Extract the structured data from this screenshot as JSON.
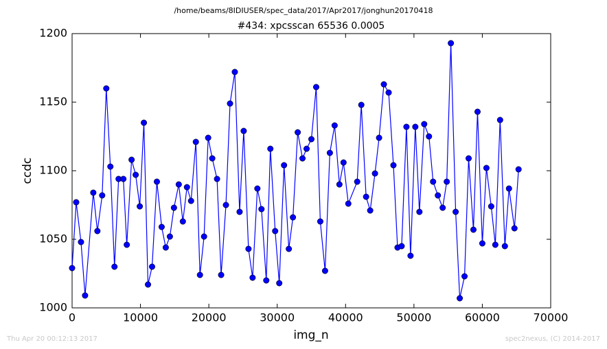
{
  "chart_data": {
    "type": "line",
    "suptitle": "/home/beams/8IDIUSER/spec_data/2017/Apr2017/jonghun20170418",
    "title": "#434: xpcsscan 65536 0.0005",
    "xlabel": "img_n",
    "ylabel": "ccdc",
    "color": "#0000ff",
    "xlim": [
      0,
      70000
    ],
    "xticks": [
      0,
      10000,
      20000,
      30000,
      40000,
      50000,
      60000,
      70000
    ],
    "ylim": [
      1000,
      1200
    ],
    "yticks": [
      1000,
      1050,
      1100,
      1150,
      1200
    ],
    "x": [
      0,
      600,
      1300,
      1900,
      3100,
      3700,
      4400,
      5000,
      5600,
      6200,
      6800,
      7500,
      8000,
      8700,
      9300,
      9900,
      10500,
      11100,
      11700,
      12400,
      13100,
      13700,
      14300,
      14900,
      15600,
      16200,
      16800,
      17400,
      18100,
      18700,
      19300,
      19900,
      20500,
      21200,
      21800,
      22500,
      23100,
      23800,
      24500,
      25100,
      25800,
      26400,
      27100,
      27700,
      28400,
      29000,
      29700,
      30300,
      31000,
      31700,
      32300,
      33000,
      33700,
      34300,
      35000,
      35700,
      36300,
      37000,
      37700,
      38400,
      39100,
      39700,
      40400,
      41700,
      42300,
      43000,
      43600,
      44300,
      44900,
      45600,
      46300,
      47000,
      47600,
      48200,
      48900,
      49500,
      50200,
      50800,
      51500,
      52200,
      52800,
      53500,
      54200,
      54800,
      55400,
      56100,
      56700,
      57400,
      58000,
      58700,
      59300,
      60000,
      60600,
      61300,
      61900,
      62600,
      63300,
      63900,
      64700,
      65300
    ],
    "values": [
      1029,
      1077,
      1048,
      1009,
      1084,
      1056,
      1082,
      1160,
      1103,
      1030,
      1094,
      1094,
      1046,
      1108,
      1097,
      1074,
      1135,
      1017,
      1030,
      1092,
      1059,
      1044,
      1052,
      1073,
      1090,
      1063,
      1088,
      1078,
      1121,
      1024,
      1052,
      1124,
      1109,
      1094,
      1024,
      1075,
      1149,
      1172,
      1070,
      1129,
      1043,
      1022,
      1087,
      1072,
      1020,
      1116,
      1056,
      1018,
      1104,
      1043,
      1066,
      1128,
      1109,
      1116,
      1123,
      1161,
      1063,
      1027,
      1113,
      1133,
      1090,
      1106,
      1076,
      1092,
      1148,
      1081,
      1071,
      1098,
      1124,
      1163,
      1157,
      1104,
      1044,
      1045,
      1132,
      1038,
      1132,
      1070,
      1134,
      1125,
      1092,
      1082,
      1073,
      1092,
      1193,
      1070,
      1007,
      1023,
      1109,
      1057,
      1143,
      1047,
      1102,
      1074,
      1046,
      1137,
      1045,
      1087,
      1058,
      1101
    ]
  },
  "footer_left": "Thu Apr 20 00:12:13 2017",
  "footer_right": "spec2nexus, (C) 2014-2017"
}
